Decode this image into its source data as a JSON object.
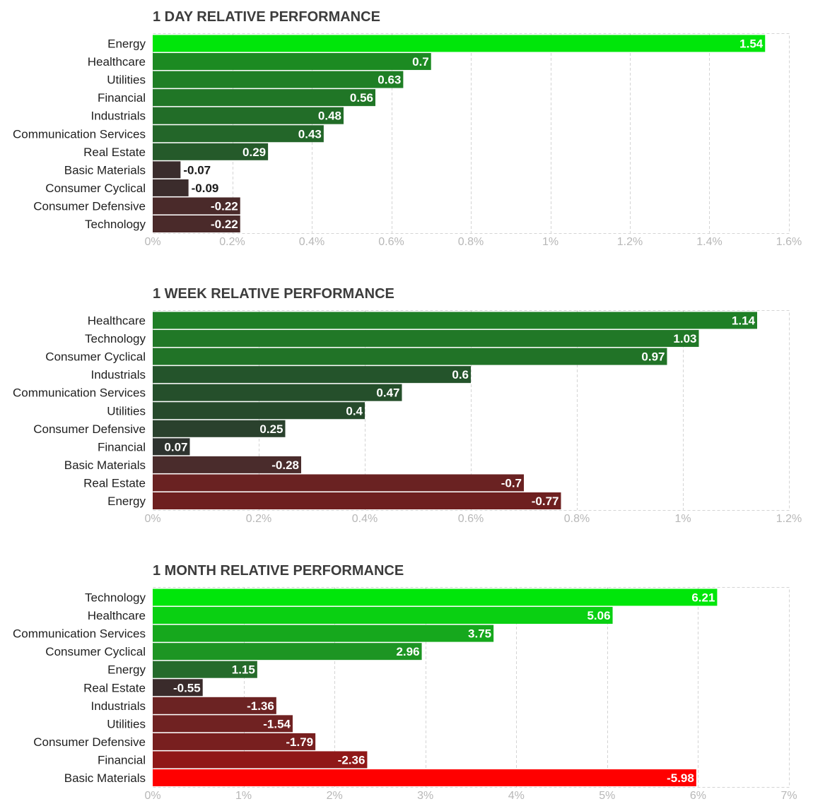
{
  "chart_data": [
    {
      "type": "bar",
      "orientation": "horizontal",
      "title": "1 DAY RELATIVE PERFORMANCE",
      "categories": [
        "Energy",
        "Healthcare",
        "Utilities",
        "Financial",
        "Industrials",
        "Communication Services",
        "Real Estate",
        "Basic Materials",
        "Consumer Cyclical",
        "Consumer Defensive",
        "Technology"
      ],
      "values": [
        1.54,
        0.7,
        0.63,
        0.56,
        0.48,
        0.43,
        0.29,
        -0.07,
        -0.09,
        -0.22,
        -0.22
      ],
      "value_labels": [
        "1.54",
        "0.7",
        "0.63",
        "0.56",
        "0.48",
        "0.43",
        "0.29",
        "-0.07",
        "-0.09",
        "-0.22",
        "-0.22"
      ],
      "bar_colors": [
        "#00e60a",
        "#1c8a22",
        "#1f7f25",
        "#207626",
        "#226d28",
        "#236629",
        "#255a2a",
        "#3a2c2c",
        "#3b2c2c",
        "#4a2a2a",
        "#4a2a2a"
      ],
      "xlim": [
        0,
        1.6
      ],
      "ticks": [
        0,
        0.2,
        0.4,
        0.6,
        0.8,
        1,
        1.2,
        1.4,
        1.6
      ],
      "tick_labels": [
        "0%",
        "0.2%",
        "0.4%",
        "0.6%",
        "0.8%",
        "1%",
        "1.2%",
        "1.4%",
        "1.6%"
      ],
      "bar_magnitude": "absolute"
    },
    {
      "type": "bar",
      "orientation": "horizontal",
      "title": "1 WEEK RELATIVE PERFORMANCE",
      "categories": [
        "Healthcare",
        "Technology",
        "Consumer Cyclical",
        "Industrials",
        "Communication Services",
        "Utilities",
        "Consumer Defensive",
        "Financial",
        "Basic Materials",
        "Real Estate",
        "Energy"
      ],
      "values": [
        1.14,
        1.03,
        0.97,
        0.6,
        0.47,
        0.4,
        0.25,
        0.07,
        -0.28,
        -0.7,
        -0.77
      ],
      "value_labels": [
        "1.14",
        "1.03",
        "0.97",
        "0.6",
        "0.47",
        "0.4",
        "0.25",
        "0.07",
        "-0.28",
        "-0.7",
        "-0.77"
      ],
      "bar_colors": [
        "#1f7f26",
        "#217827",
        "#217327",
        "#24542b",
        "#254f2b",
        "#264a2b",
        "#2a412d",
        "#2e332f",
        "#4a2c2c",
        "#6a2222",
        "#6e2020"
      ],
      "xlim": [
        0,
        1.2
      ],
      "ticks": [
        0,
        0.2,
        0.4,
        0.6,
        0.8,
        1,
        1.2
      ],
      "tick_labels": [
        "0%",
        "0.2%",
        "0.4%",
        "0.6%",
        "0.8%",
        "1%",
        "1.2%"
      ],
      "bar_magnitude": "absolute"
    },
    {
      "type": "bar",
      "orientation": "horizontal",
      "title": "1 MONTH RELATIVE PERFORMANCE",
      "categories": [
        "Technology",
        "Healthcare",
        "Communication Services",
        "Consumer Cyclical",
        "Energy",
        "Real Estate",
        "Industrials",
        "Utilities",
        "Consumer Defensive",
        "Financial",
        "Basic Materials"
      ],
      "values": [
        6.21,
        5.06,
        3.75,
        2.96,
        1.15,
        -0.55,
        -1.36,
        -1.54,
        -1.79,
        -2.36,
        -5.98
      ],
      "value_labels": [
        "6.21",
        "5.06",
        "3.75",
        "2.96",
        "1.15",
        "-0.55",
        "-1.36",
        "-1.54",
        "-1.79",
        "-2.36",
        "-5.98"
      ],
      "bar_colors": [
        "#00e60a",
        "#0ad012",
        "#16a81d",
        "#1d9523",
        "#256b2b",
        "#3a2b2b",
        "#6c2323",
        "#702222",
        "#781f1f",
        "#901818",
        "#ff0000"
      ],
      "xlim": [
        0,
        7
      ],
      "ticks": [
        0,
        1,
        2,
        3,
        4,
        5,
        6,
        7
      ],
      "tick_labels": [
        "0%",
        "1%",
        "2%",
        "3%",
        "4%",
        "5%",
        "6%",
        "7%"
      ],
      "bar_magnitude": "absolute"
    }
  ]
}
